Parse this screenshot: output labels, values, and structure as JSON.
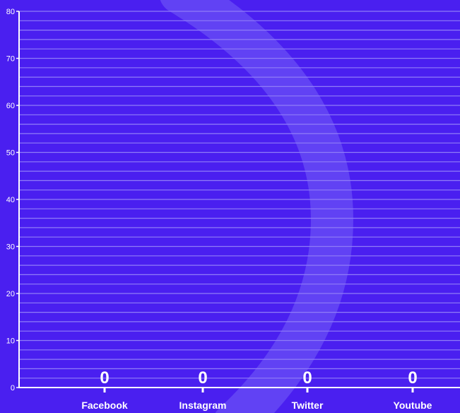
{
  "colors": {
    "background": "#4a1ff0",
    "decor_arc": "#6a4ff5",
    "gridline": "#8f7cf7",
    "axis": "#ffffff",
    "text": "#ffffff"
  },
  "chart_data": {
    "type": "bar",
    "categories": [
      "Facebook",
      "Instagram",
      "Twitter",
      "Youtube"
    ],
    "values": [
      0,
      0,
      0,
      0
    ],
    "data_labels": [
      "0",
      "0",
      "0",
      "0"
    ],
    "title": "",
    "xlabel": "",
    "ylabel": "",
    "ylim": [
      0,
      80
    ],
    "yticks": [
      0,
      10,
      20,
      30,
      40,
      50,
      60,
      70,
      80
    ],
    "ytick_labels": [
      "0",
      "10",
      "20",
      "30",
      "40",
      "50",
      "60",
      "70",
      "80"
    ],
    "grid_step": 2,
    "grid": true,
    "legend": "none"
  }
}
